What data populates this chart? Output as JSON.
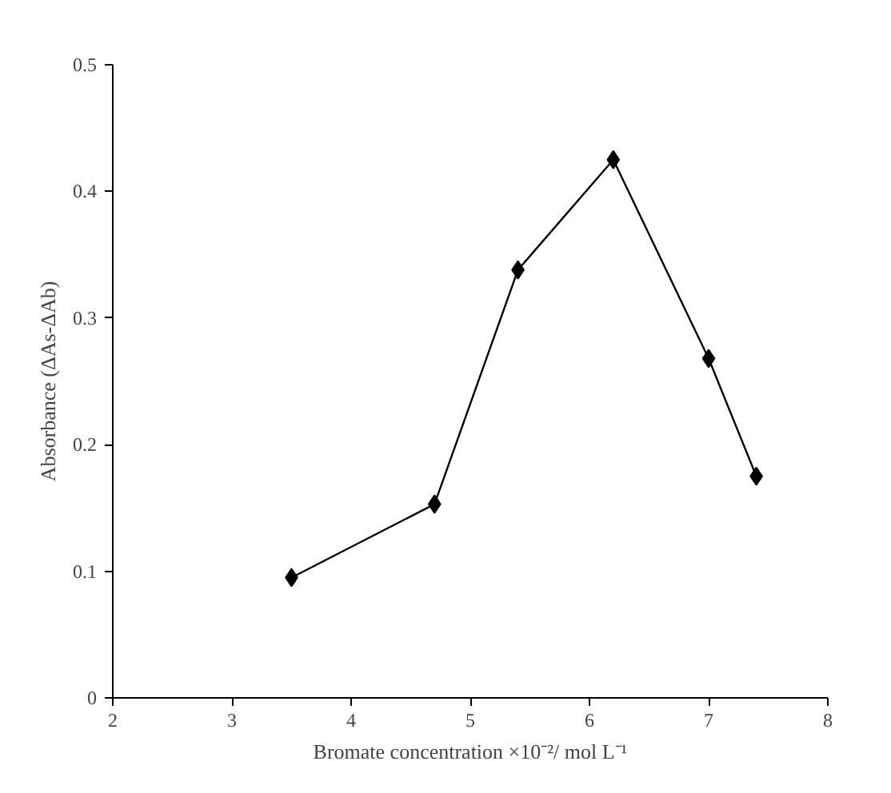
{
  "chart_data": {
    "type": "line",
    "xlabel": "Bromate concentration ×10⁻²/ mol L⁻¹",
    "ylabel": "Absorbance (ΔAs-ΔAb)",
    "x": [
      3.5,
      4.7,
      5.4,
      6.2,
      7.0,
      7.4
    ],
    "series": [
      {
        "color": "#000000",
        "values": [
          0.095,
          0.153,
          0.338,
          0.425,
          0.268,
          0.175
        ]
      }
    ],
    "xlim": [
      2,
      8
    ],
    "xticks": [
      2,
      3,
      4,
      5,
      6,
      7,
      8
    ],
    "ylim": [
      0,
      0.5
    ],
    "yticks": [
      0,
      0.1,
      0.2,
      0.3,
      0.4,
      0.5
    ],
    "marker": "diamond",
    "line_style": "solid",
    "grid": false
  }
}
